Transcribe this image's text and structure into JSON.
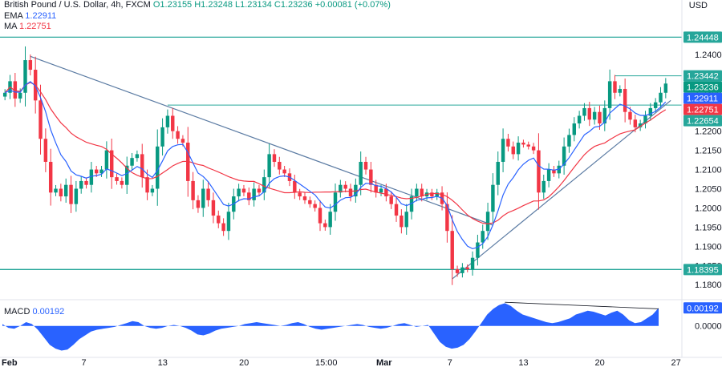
{
  "header": {
    "symbol": "British Pound / U.S. Dollar, 4h, FXCM",
    "ohlc": "O1.23155 H1.23248 L1.23134 C1.23236 +0.00081 (+0.07%)",
    "ema_label": "EMA",
    "ema_value": "1.22911",
    "ma_label": "MA",
    "ma_value": "1.22751",
    "currency": "USD"
  },
  "macd_panel": {
    "label": "MACD",
    "value": "0.00192",
    "badge": "0.00192",
    "zero_tick": "0.00000"
  },
  "colors": {
    "up": "#089981",
    "down": "#f23645",
    "ema": "#2962ff",
    "ma": "#f23645",
    "level": "#26a69a",
    "trend": "#5b7ba3",
    "macd": "#2962ff"
  },
  "chart_data": {
    "type": "candlestick",
    "ylim": [
      1.1765,
      1.2525
    ],
    "y_ticks": [
      "1.24000",
      "1.23500",
      "1.23000",
      "1.22500",
      "1.22000",
      "1.21500",
      "1.21000",
      "1.20500",
      "1.20000",
      "1.19500",
      "1.19000",
      "1.18500",
      "1.18000"
    ],
    "x_ticks": [
      "Feb",
      "7",
      "13",
      "20",
      "15:00",
      "Mar",
      "7",
      "13",
      "20",
      "27"
    ],
    "price_badges": [
      {
        "text": "1.24448",
        "value": 1.24448,
        "color": "#26a69a"
      },
      {
        "text": "1.23442",
        "value": 1.23442,
        "color": "#26a69a"
      },
      {
        "text": "1.23236",
        "value": 1.23236,
        "color": "#089981"
      },
      {
        "text": "1.22911",
        "value": 1.22911,
        "color": "#2962ff"
      },
      {
        "text": "1.22751",
        "value": 1.22751,
        "color": "#f23645"
      },
      {
        "text": "1.22654",
        "value": 1.22654,
        "color": "#26a69a"
      },
      {
        "text": "1.18395",
        "value": 1.18395,
        "color": "#26a69a"
      }
    ],
    "series": [
      {
        "name": "Close",
        "values": [
          1.23,
          1.233,
          1.2285,
          1.23,
          1.2385,
          1.236,
          1.228,
          1.218,
          1.212,
          1.204,
          1.205,
          1.203,
          1.206,
          1.201,
          1.205,
          1.207,
          1.206,
          1.21,
          1.209,
          1.21,
          1.215,
          1.208,
          1.207,
          1.206,
          1.211,
          1.213,
          1.214,
          1.208,
          1.204,
          1.205,
          1.216,
          1.221,
          1.224,
          1.22,
          1.218,
          1.217,
          1.207,
          1.202,
          1.2,
          1.205,
          1.202,
          1.198,
          1.196,
          1.194,
          1.199,
          1.203,
          1.205,
          1.204,
          1.202,
          1.205,
          1.204,
          1.208,
          1.214,
          1.212,
          1.21,
          1.209,
          1.207,
          1.204,
          1.203,
          1.202,
          1.201,
          1.2,
          1.196,
          1.195,
          1.199,
          1.204,
          1.206,
          1.205,
          1.203,
          1.206,
          1.212,
          1.21,
          1.206,
          1.204,
          1.205,
          1.203,
          1.201,
          1.198,
          1.195,
          1.199,
          1.203,
          1.205,
          1.203,
          1.204,
          1.203,
          1.204,
          1.201,
          1.194,
          1.184,
          1.183,
          1.1845,
          1.184,
          1.187,
          1.191,
          1.194,
          1.199,
          1.206,
          1.212,
          1.218,
          1.216,
          1.214,
          1.217,
          1.2165,
          1.216,
          1.215,
          1.204,
          1.207,
          1.21,
          1.209,
          1.211,
          1.216,
          1.219,
          1.222,
          1.224,
          1.226,
          1.223,
          1.225,
          1.222,
          1.226,
          1.233,
          1.23,
          1.231,
          1.225,
          1.223,
          1.221,
          1.222,
          1.224,
          1.226,
          1.2275,
          1.23,
          1.2324
        ]
      },
      {
        "name": "EMA",
        "value_label": "1.22911"
      },
      {
        "name": "MA",
        "value_label": "1.22751"
      }
    ],
    "annotations": [
      {
        "kind": "horizontal",
        "value": 1.24448
      },
      {
        "kind": "horizontal",
        "value": 1.18395
      },
      {
        "kind": "horizontal_ray",
        "value": 1.2268,
        "from_index": 32
      },
      {
        "kind": "horizontal_ray",
        "value": 1.23442,
        "from_index": 120
      },
      {
        "kind": "trendline",
        "from": [
          5,
          1.2395
        ],
        "to": [
          96,
          1.1955
        ]
      },
      {
        "kind": "trendline",
        "from": [
          88,
          1.1815
        ],
        "to": [
          131,
          1.228
        ]
      }
    ],
    "macd": {
      "ylim": [
        -0.0029,
        0.0026
      ],
      "series": [
        0.0002,
        -0.0002,
        -0.0003,
        0.0,
        0.0004,
        0.0002,
        -0.0004,
        -0.0012,
        -0.002,
        -0.0024,
        -0.0026,
        -0.0025,
        -0.002,
        -0.0014,
        -0.001,
        -0.0006,
        -0.0004,
        -0.0003,
        -0.0002,
        -0.0001,
        0.0001,
        0.0003,
        0.0005,
        0.0004,
        0.0,
        -0.0002,
        -0.0003,
        -0.0002,
        0.0,
        0.0001,
        0.0,
        -0.0002,
        -0.0005,
        -0.0009,
        -0.001,
        -0.0008,
        -0.0005,
        -0.0003,
        -0.0002,
        -0.0001,
        0.0,
        0.0002,
        0.0003,
        0.0004,
        0.0003,
        0.0002,
        0.0001,
        0.0,
        0.0001,
        0.0003,
        0.0004,
        0.0002,
        -0.0001,
        -0.0003,
        -0.0004,
        -0.0003,
        -0.0002,
        -0.0001,
        0.0,
        0.0001,
        0.0002,
        0.0001,
        -0.0001,
        -0.0002,
        -0.0003,
        -0.0002,
        0.0,
        0.0002,
        0.0003,
        0.0001,
        -0.0001,
        0.0,
        0.0001,
        -0.0008,
        -0.0017,
        -0.0022,
        -0.0024,
        -0.0023,
        -0.002,
        -0.0014,
        -0.0006,
        0.0003,
        0.0012,
        0.0018,
        0.0022,
        0.0024,
        0.0021,
        0.0016,
        0.0012,
        0.001,
        0.0008,
        0.0006,
        0.0004,
        0.0003,
        0.0004,
        0.0006,
        0.0008,
        0.0012,
        0.0014,
        0.0016,
        0.0015,
        0.0013,
        0.0011,
        0.0014,
        0.0016,
        0.0012,
        0.0006,
        0.0003,
        0.0004,
        0.0008,
        0.0012,
        0.0019
      ]
    }
  }
}
